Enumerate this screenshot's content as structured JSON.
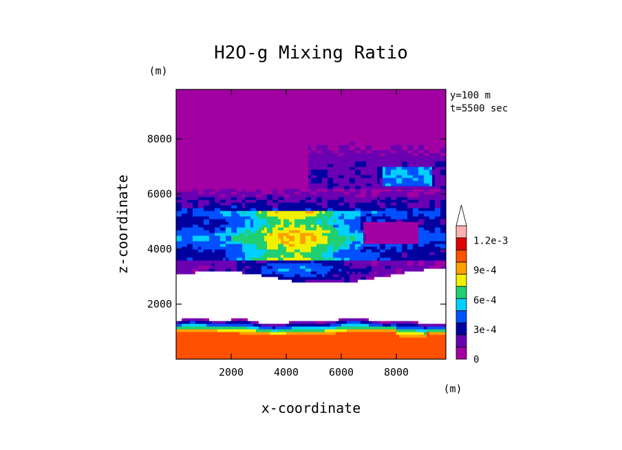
{
  "chart_data": {
    "type": "heatmap",
    "title": "H2O-g Mixing Ratio",
    "xlabel": "x-coordinate",
    "ylabel": "z-coordinate",
    "x_unit": "(m)",
    "y_unit": "(m)",
    "annotations": [
      "y=100 m",
      "t=5500 sec"
    ],
    "xlim": [
      0,
      9800
    ],
    "ylim": [
      0,
      9800
    ],
    "x_ticks": [
      2000,
      4000,
      6000,
      8000
    ],
    "y_ticks": [
      2000,
      4000,
      6000,
      8000
    ],
    "x_tick_labels": [
      "2000",
      "4000",
      "6000",
      "8000"
    ],
    "y_tick_labels": [
      "2000",
      "4000",
      "6000",
      "8000"
    ],
    "colorbar": {
      "levels": [
        0,
        0.00015,
        0.0003,
        0.00045,
        0.0006,
        0.00075,
        0.0009,
        0.00105,
        0.0012,
        0.00135
      ],
      "tick_labels": [
        "0",
        "3e-4",
        "6e-4",
        "9e-4",
        "1.2e-3"
      ],
      "tick_values": [
        0,
        0.0003,
        0.0006,
        0.0009,
        0.0012
      ],
      "colors": [
        "#a200a2",
        "#6a00b2",
        "#0000a0",
        "#0050ff",
        "#00d0ff",
        "#20d070",
        "#f0f000",
        "#ffa000",
        "#ff5000",
        "#e00000",
        "#ffb0b0",
        "#ffffff"
      ],
      "extend": "max"
    },
    "field_description": {
      "z_levels": [
        0,
        800,
        1200,
        1500,
        2800,
        3200,
        3600,
        4000,
        4400,
        5000,
        5600,
        6200,
        6800,
        7600,
        8800,
        9800
      ],
      "layers": [
        {
          "z": [
            0,
            1000
          ],
          "value": 0.00135
        },
        {
          "z": [
            1000,
            1500
          ],
          "value": 0.0006
        },
        {
          "z": [
            1500,
            2800
          ],
          "value": 0.0014
        },
        {
          "z": [
            3000,
            4000
          ],
          "value": 0.00045
        },
        {
          "z": [
            4000,
            5400
          ],
          "value": 0.0009
        },
        {
          "z": [
            5400,
            6000
          ],
          "value": 0.0003
        },
        {
          "z": [
            6000,
            8000
          ],
          "value": 0.00015
        },
        {
          "z": [
            8000,
            9800
          ],
          "value": 0.0
        }
      ]
    }
  }
}
